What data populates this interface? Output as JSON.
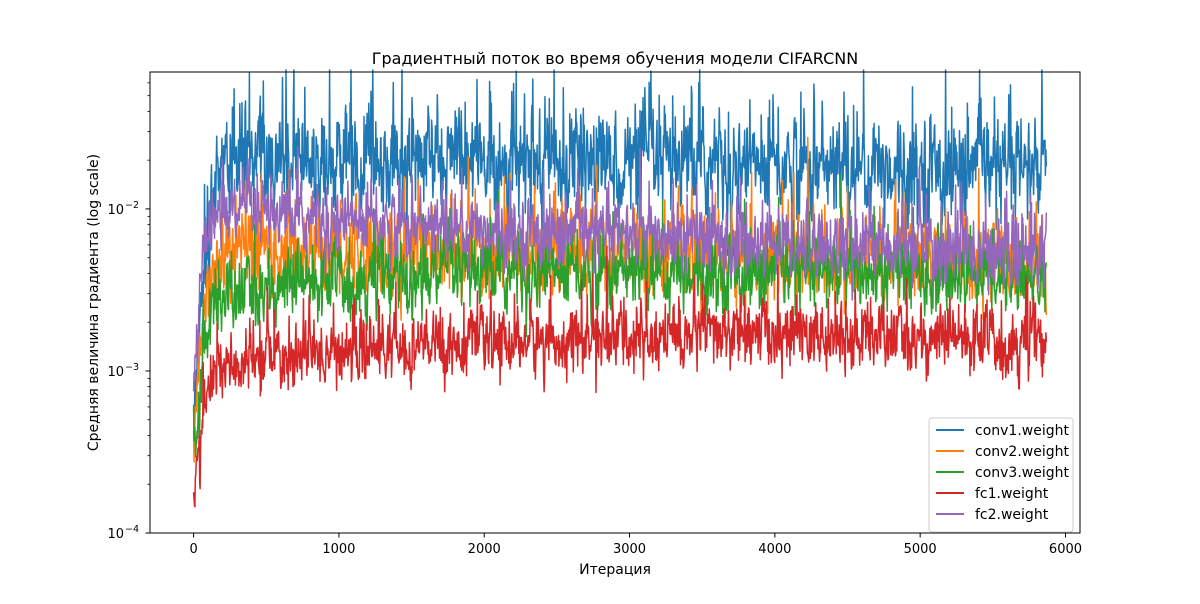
{
  "chart_data": {
    "type": "line",
    "title": "Градиентный поток во время обучения модели CIFARCNN",
    "xlabel": "Итерация",
    "ylabel": "Средняя величина градиента (log scale)",
    "xlim": [
      -300,
      6100
    ],
    "ylim": [
      0.0001,
      0.07
    ],
    "yscale": "log",
    "grid": false,
    "legend_position": "lower-right",
    "x_ticks": [
      0,
      1000,
      2000,
      3000,
      4000,
      5000,
      6000
    ],
    "x_tick_labels": [
      "0",
      "1000",
      "2000",
      "3000",
      "4000",
      "5000",
      "6000"
    ],
    "y_ticks": [
      0.0001,
      0.001,
      0.01
    ],
    "y_tick_labels": [
      {
        "base": "10",
        "exp": "−4"
      },
      {
        "base": "10",
        "exp": "−3"
      },
      {
        "base": "10",
        "exp": "−2"
      }
    ],
    "total_iterations": 5870,
    "series": [
      {
        "name": "conv1.weight",
        "color": "#1f77b4",
        "x": [
          0,
          20,
          40,
          60,
          80,
          100,
          130,
          160,
          200,
          250,
          300,
          400,
          600,
          800,
          1000,
          1500,
          2000,
          3000,
          4000,
          5000,
          5870
        ],
        "value": [
          0.0006,
          0.0009,
          0.0015,
          0.003,
          0.005,
          0.008,
          0.012,
          0.015,
          0.017,
          0.019,
          0.02,
          0.021,
          0.021,
          0.0205,
          0.02,
          0.02,
          0.0195,
          0.019,
          0.0185,
          0.018,
          0.0175
        ],
        "spread": [
          0.2,
          0.2,
          0.22,
          0.24,
          0.25,
          0.27,
          0.28,
          0.28,
          0.28,
          0.28,
          0.28,
          0.28,
          0.28,
          0.28,
          0.28,
          0.28,
          0.28,
          0.28,
          0.28,
          0.28,
          0.28
        ]
      },
      {
        "name": "conv2.weight",
        "color": "#ff7f0e",
        "x": [
          0,
          20,
          40,
          60,
          80,
          100,
          150,
          200,
          300,
          500,
          1000,
          2000,
          3000,
          4000,
          5000,
          5870
        ],
        "value": [
          0.0004,
          0.0006,
          0.001,
          0.0016,
          0.0025,
          0.0035,
          0.0045,
          0.0052,
          0.0055,
          0.0057,
          0.0055,
          0.0053,
          0.0052,
          0.005,
          0.0049,
          0.0048
        ],
        "spread": [
          0.18,
          0.18,
          0.2,
          0.2,
          0.22,
          0.22,
          0.23,
          0.23,
          0.23,
          0.23,
          0.23,
          0.23,
          0.23,
          0.23,
          0.24,
          0.24
        ]
      },
      {
        "name": "conv3.weight",
        "color": "#2ca02c",
        "x": [
          0,
          20,
          40,
          60,
          80,
          100,
          150,
          200,
          300,
          500,
          1000,
          2000,
          3000,
          4000,
          5000,
          5870
        ],
        "value": [
          0.0003,
          0.0004,
          0.0007,
          0.0012,
          0.0016,
          0.002,
          0.0025,
          0.0028,
          0.003,
          0.0033,
          0.0036,
          0.004,
          0.0042,
          0.0041,
          0.004,
          0.004
        ],
        "spread": [
          0.18,
          0.18,
          0.2,
          0.2,
          0.2,
          0.2,
          0.2,
          0.2,
          0.2,
          0.2,
          0.2,
          0.2,
          0.2,
          0.2,
          0.2,
          0.2
        ]
      },
      {
        "name": "fc1.weight",
        "color": "#d62728",
        "x": [
          0,
          20,
          40,
          60,
          80,
          100,
          150,
          200,
          300,
          500,
          1000,
          2000,
          3000,
          4000,
          5000,
          5870
        ],
        "value": [
          0.00016,
          0.00022,
          0.0003,
          0.0005,
          0.0007,
          0.0008,
          0.0009,
          0.001,
          0.0011,
          0.0012,
          0.0013,
          0.0015,
          0.0016,
          0.0017,
          0.0016,
          0.0015
        ],
        "spread": [
          0.12,
          0.12,
          0.14,
          0.15,
          0.16,
          0.16,
          0.17,
          0.17,
          0.17,
          0.17,
          0.17,
          0.17,
          0.18,
          0.18,
          0.18,
          0.19
        ]
      },
      {
        "name": "fc2.weight",
        "color": "#9467bd",
        "x": [
          0,
          20,
          40,
          60,
          80,
          100,
          150,
          200,
          300,
          500,
          1000,
          2000,
          3000,
          4000,
          5000,
          5870
        ],
        "value": [
          0.0007,
          0.0012,
          0.0025,
          0.005,
          0.0075,
          0.009,
          0.0095,
          0.0095,
          0.0093,
          0.009,
          0.0085,
          0.0075,
          0.0068,
          0.0062,
          0.0058,
          0.0052
        ],
        "spread": [
          0.15,
          0.15,
          0.15,
          0.16,
          0.16,
          0.16,
          0.17,
          0.17,
          0.17,
          0.17,
          0.17,
          0.17,
          0.18,
          0.18,
          0.19,
          0.2
        ]
      }
    ]
  }
}
